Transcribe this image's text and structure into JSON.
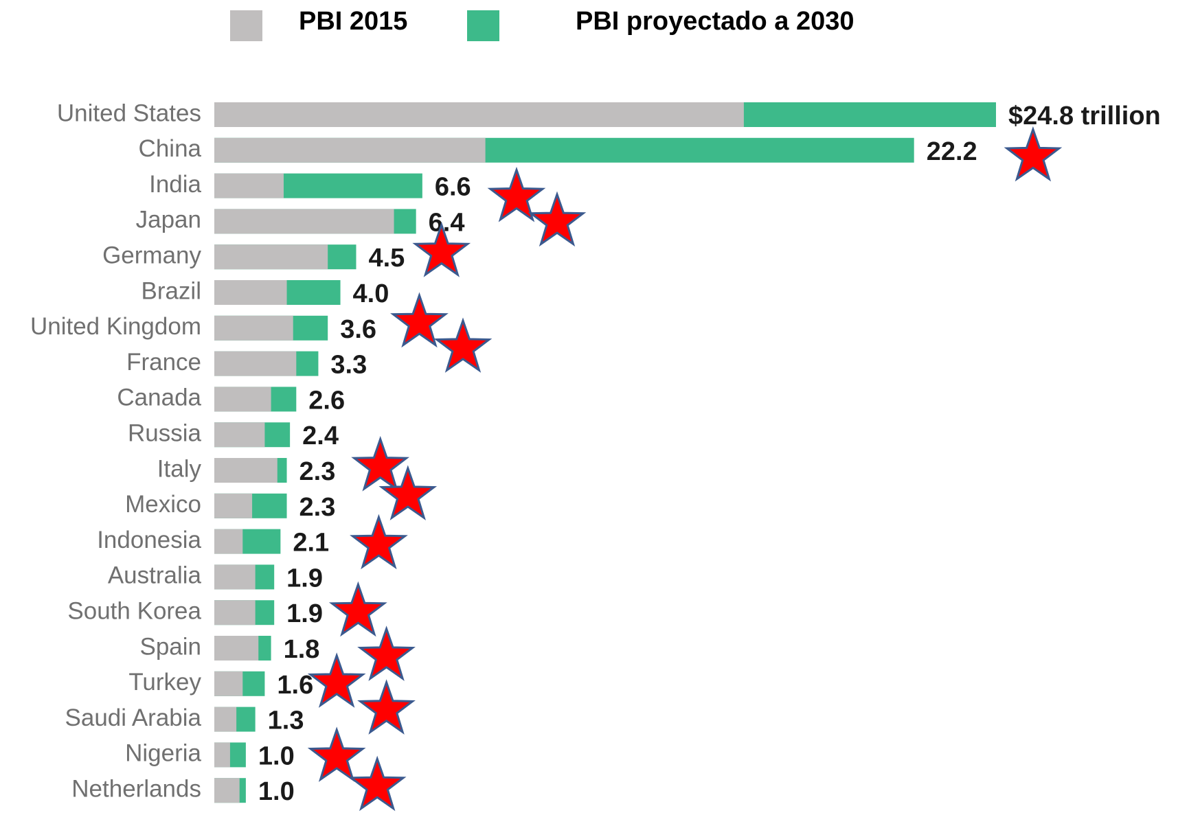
{
  "chart_data": {
    "type": "bar",
    "orientation": "horizontal",
    "categories": [
      "United States",
      "China",
      "India",
      "Japan",
      "Germany",
      "Brazil",
      "United Kingdom",
      "France",
      "Canada",
      "Russia",
      "Italy",
      "Mexico",
      "Indonesia",
      "Australia",
      "South Korea",
      "Spain",
      "Turkey",
      "Saudi Arabia",
      "Nigeria",
      "Netherlands"
    ],
    "series": [
      {
        "name": "PBI proyectado a 2030",
        "color": "#3dba8a",
        "values": [
          24.8,
          22.2,
          6.6,
          6.4,
          4.5,
          4.0,
          3.6,
          3.3,
          2.6,
          2.4,
          2.3,
          2.3,
          2.1,
          1.9,
          1.9,
          1.8,
          1.6,
          1.3,
          1.0,
          1.0
        ],
        "value_labels": [
          "$24.8 trillion",
          "22.2",
          "6.6",
          "6.4",
          "4.5",
          "4.0",
          "3.6",
          "3.3",
          "2.6",
          "2.4",
          "2.3",
          "2.3",
          "2.1",
          "1.9",
          "1.9",
          "1.8",
          "1.6",
          "1.3",
          "1.0",
          "1.0"
        ]
      },
      {
        "name": "PBI 2015",
        "color": "#c0bebe",
        "values": [
          16.8,
          8.6,
          2.2,
          5.7,
          3.6,
          2.3,
          2.5,
          2.6,
          1.8,
          1.6,
          2.0,
          1.2,
          0.9,
          1.3,
          1.3,
          1.4,
          0.9,
          0.7,
          0.5,
          0.8
        ]
      }
    ],
    "xlim": [
      0,
      24.8
    ]
  }
}
